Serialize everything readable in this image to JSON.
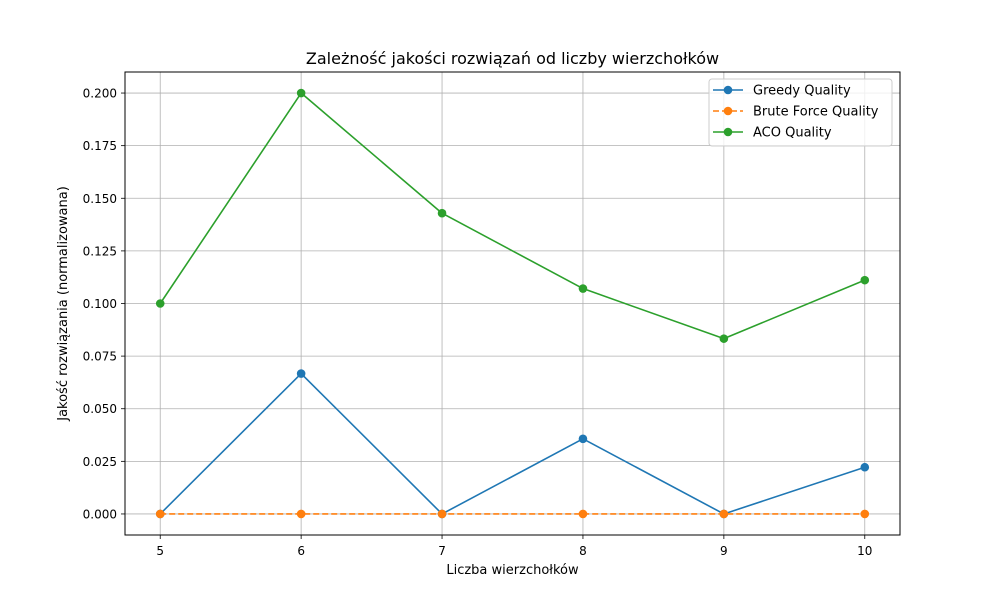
{
  "chart_data": {
    "type": "line",
    "title": "Zależność jakości rozwiązań od liczby wierzchołków",
    "xlabel": "Liczba wierzchołków",
    "ylabel": "Jakość rozwiązania (normalizowana)",
    "x": [
      5,
      6,
      7,
      8,
      9,
      10
    ],
    "xlim": [
      4.75,
      10.25
    ],
    "ylim": [
      -0.01,
      0.21
    ],
    "xticks": [
      "5",
      "6",
      "7",
      "8",
      "9",
      "10"
    ],
    "yticks": [
      "0.000",
      "0.025",
      "0.050",
      "0.075",
      "0.100",
      "0.125",
      "0.150",
      "0.175",
      "0.200"
    ],
    "grid": true,
    "legend_position": "top-right",
    "series": [
      {
        "name": "Greedy Quality",
        "values": [
          0.0,
          0.0667,
          0.0,
          0.0357,
          0.0,
          0.0222
        ],
        "color": "#1f77b4",
        "dashed": false
      },
      {
        "name": "Brute Force Quality",
        "values": [
          0.0,
          0.0,
          0.0,
          0.0,
          0.0,
          0.0
        ],
        "color": "#ff7f0e",
        "dashed": true
      },
      {
        "name": "ACO Quality",
        "values": [
          0.1,
          0.2,
          0.1429,
          0.1071,
          0.0833,
          0.1111
        ],
        "color": "#2ca02c",
        "dashed": false
      }
    ]
  }
}
